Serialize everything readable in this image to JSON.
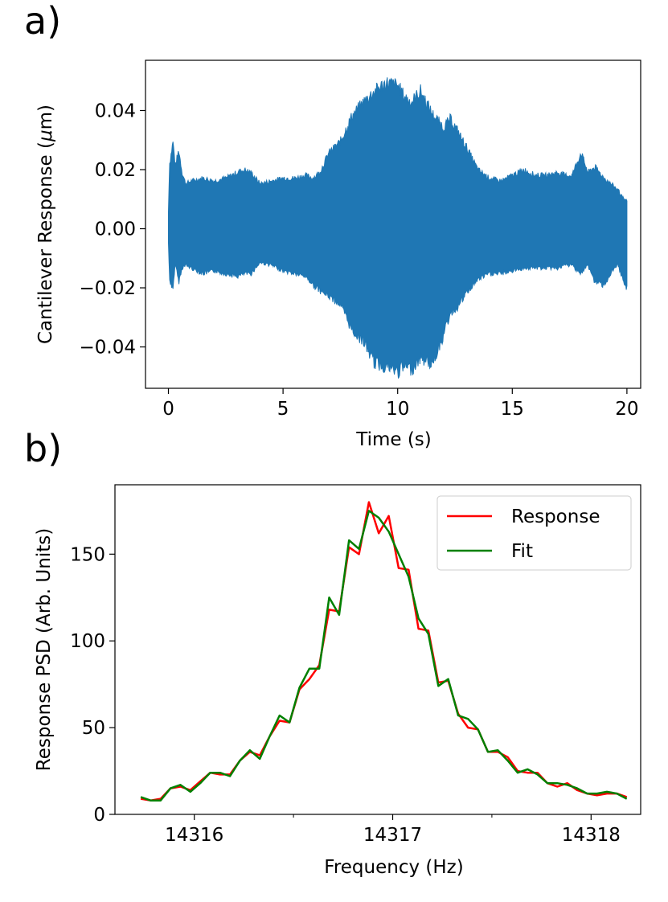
{
  "panels": {
    "a": {
      "label": "a)"
    },
    "b": {
      "label": "b)"
    }
  },
  "chart_data": [
    {
      "type": "area",
      "panel": "a",
      "title": "",
      "xlabel": "Time (s)",
      "ylabel": "Cantilever Response (μm)",
      "ylabel_parts": {
        "prefix": "Cantilever Response (",
        "mu": "μ",
        "suffix": "m)"
      },
      "xlim": [
        -1,
        20.6
      ],
      "ylim": [
        -0.054,
        0.057
      ],
      "xticks": [
        0,
        5,
        10,
        15,
        20
      ],
      "xtick_labels": [
        "0",
        "5",
        "10",
        "15",
        "20"
      ],
      "yticks": [
        -0.04,
        -0.02,
        0.0,
        0.02,
        0.04
      ],
      "ytick_labels": [
        "−0.04",
        "−0.02",
        "0.00",
        "0.02",
        "0.04"
      ],
      "series": [
        {
          "name": "response",
          "color": "#1f77b4",
          "envelope": {
            "t": [
              0,
              0.05,
              0.2,
              0.3,
              0.45,
              0.6,
              0.75,
              1.0,
              1.5,
              2.0,
              2.5,
              3.0,
              3.3,
              3.6,
              4.0,
              4.5,
              5.0,
              5.5,
              6.0,
              6.3,
              6.6,
              7.0,
              7.5,
              8.0,
              8.5,
              9.0,
              9.5,
              10.0,
              10.3,
              10.6,
              11.0,
              11.5,
              12.0,
              12.3,
              12.6,
              13.0,
              13.5,
              14.0,
              14.5,
              15.0,
              15.5,
              16.0,
              16.5,
              17.0,
              17.3,
              17.6,
              18.0,
              18.3,
              18.6,
              19.0,
              19.3,
              19.6,
              19.9,
              20.0
            ],
            "upper": [
              0.006,
              0.023,
              0.031,
              0.022,
              0.028,
              0.02,
              0.016,
              0.017,
              0.018,
              0.017,
              0.018,
              0.02,
              0.021,
              0.02,
              0.016,
              0.017,
              0.018,
              0.018,
              0.019,
              0.018,
              0.02,
              0.027,
              0.031,
              0.04,
              0.045,
              0.049,
              0.052,
              0.051,
              0.047,
              0.045,
              0.049,
              0.041,
              0.036,
              0.039,
              0.035,
              0.029,
              0.021,
              0.018,
              0.017,
              0.019,
              0.021,
              0.019,
              0.019,
              0.02,
              0.019,
              0.019,
              0.027,
              0.02,
              0.022,
              0.018,
              0.016,
              0.014,
              0.01,
              0.01
            ],
            "lower": [
              -0.005,
              -0.018,
              -0.022,
              -0.012,
              -0.019,
              -0.014,
              -0.013,
              -0.014,
              -0.016,
              -0.015,
              -0.016,
              -0.017,
              -0.016,
              -0.016,
              -0.012,
              -0.013,
              -0.015,
              -0.016,
              -0.017,
              -0.02,
              -0.022,
              -0.024,
              -0.027,
              -0.036,
              -0.04,
              -0.048,
              -0.049,
              -0.051,
              -0.049,
              -0.05,
              -0.046,
              -0.048,
              -0.038,
              -0.03,
              -0.028,
              -0.023,
              -0.018,
              -0.016,
              -0.016,
              -0.015,
              -0.014,
              -0.014,
              -0.014,
              -0.014,
              -0.013,
              -0.013,
              -0.016,
              -0.013,
              -0.019,
              -0.02,
              -0.016,
              -0.013,
              -0.02,
              -0.021
            ]
          }
        }
      ]
    },
    {
      "type": "line",
      "panel": "b",
      "title": "",
      "xlabel": "Frequency (Hz)",
      "ylabel": "Response PSD (Arb. Units)",
      "xlim": [
        14315.6,
        14318.25
      ],
      "ylim": [
        0,
        190
      ],
      "xticks": [
        14316,
        14317,
        14318
      ],
      "xtick_labels": [
        "14316",
        "14317",
        "14318"
      ],
      "xticks_minor": [
        14316.5,
        14317.5
      ],
      "yticks": [
        0,
        50,
        100,
        150
      ],
      "ytick_labels": [
        "0",
        "50",
        "100",
        "150"
      ],
      "legend": {
        "placement": "top-right",
        "entries": [
          "Response",
          "Fit"
        ]
      },
      "x": [
        14315.73,
        14315.78,
        14315.83,
        14315.88,
        14315.93,
        14315.98,
        14316.03,
        14316.08,
        14316.13,
        14316.18,
        14316.23,
        14316.28,
        14316.33,
        14316.38,
        14316.43,
        14316.48,
        14316.53,
        14316.58,
        14316.63,
        14316.68,
        14316.73,
        14316.78,
        14316.83,
        14316.88,
        14316.93,
        14316.98,
        14317.03,
        14317.08,
        14317.13,
        14317.18,
        14317.23,
        14317.28,
        14317.33,
        14317.38,
        14317.43,
        14317.48,
        14317.53,
        14317.58,
        14317.63,
        14317.68,
        14317.73,
        14317.78,
        14317.83,
        14317.88,
        14317.93,
        14317.98,
        14318.03,
        14318.08,
        14318.13,
        14318.18
      ],
      "series": [
        {
          "name": "Response",
          "color": "#ff0000",
          "values": [
            9,
            8,
            9,
            15,
            16,
            14,
            19,
            24,
            23,
            23,
            31,
            36,
            34,
            45,
            54,
            53,
            72,
            78,
            86,
            118,
            117,
            154,
            150,
            180,
            162,
            172,
            142,
            141,
            107,
            106,
            76,
            77,
            58,
            50,
            49,
            36,
            36,
            33,
            25,
            24,
            24,
            18,
            16,
            18,
            14,
            12,
            11,
            12,
            12,
            10
          ]
        },
        {
          "name": "Fit",
          "color": "#008000",
          "values": [
            10,
            8,
            8,
            15,
            17,
            13,
            18,
            24,
            24,
            22,
            31,
            37,
            32,
            45,
            57,
            53,
            73,
            84,
            84,
            125,
            115,
            158,
            153,
            175,
            171,
            163,
            150,
            137,
            113,
            104,
            74,
            78,
            57,
            55,
            49,
            36,
            37,
            31,
            24,
            26,
            23,
            18,
            18,
            17,
            15,
            12,
            12,
            13,
            12,
            9
          ]
        }
      ]
    }
  ]
}
